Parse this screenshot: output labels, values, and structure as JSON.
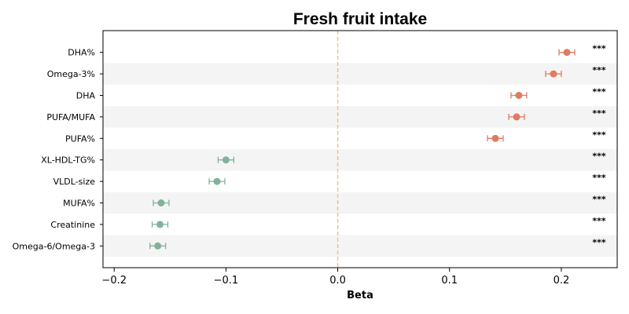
{
  "chart_data": {
    "type": "forest",
    "title": "Fresh fruit intake",
    "xlabel": "Beta",
    "xlim": [
      -0.21,
      0.25
    ],
    "xticks": [
      -0.2,
      -0.1,
      0.0,
      0.1,
      0.2
    ],
    "xtick_labels": [
      "−0.2",
      "−0.1",
      "0.0",
      "0.1",
      "0.2"
    ],
    "reference_line": 0.0,
    "colors": {
      "positive": "#e07a5f",
      "negative": "#81b29a",
      "reference_line": "#f4c08a",
      "band": "#f4f4f4"
    },
    "rows": [
      {
        "label": "DHA%",
        "beta": 0.205,
        "ci_low": 0.198,
        "ci_high": 0.212,
        "sig": "***"
      },
      {
        "label": "Omega-3%",
        "beta": 0.193,
        "ci_low": 0.186,
        "ci_high": 0.2,
        "sig": "***"
      },
      {
        "label": "DHA",
        "beta": 0.162,
        "ci_low": 0.155,
        "ci_high": 0.169,
        "sig": "***"
      },
      {
        "label": "PUFA/MUFA",
        "beta": 0.16,
        "ci_low": 0.153,
        "ci_high": 0.167,
        "sig": "***"
      },
      {
        "label": "PUFA%",
        "beta": 0.141,
        "ci_low": 0.134,
        "ci_high": 0.148,
        "sig": "***"
      },
      {
        "label": "XL-HDL-TG%",
        "beta": -0.1,
        "ci_low": -0.107,
        "ci_high": -0.093,
        "sig": "***"
      },
      {
        "label": "VLDL-size",
        "beta": -0.108,
        "ci_low": -0.115,
        "ci_high": -0.101,
        "sig": "***"
      },
      {
        "label": "MUFA%",
        "beta": -0.158,
        "ci_low": -0.165,
        "ci_high": -0.151,
        "sig": "***"
      },
      {
        "label": "Creatinine",
        "beta": -0.159,
        "ci_low": -0.166,
        "ci_high": -0.152,
        "sig": "***"
      },
      {
        "label": "Omega-6/Omega-3",
        "beta": -0.161,
        "ci_low": -0.168,
        "ci_high": -0.154,
        "sig": "***"
      }
    ]
  }
}
